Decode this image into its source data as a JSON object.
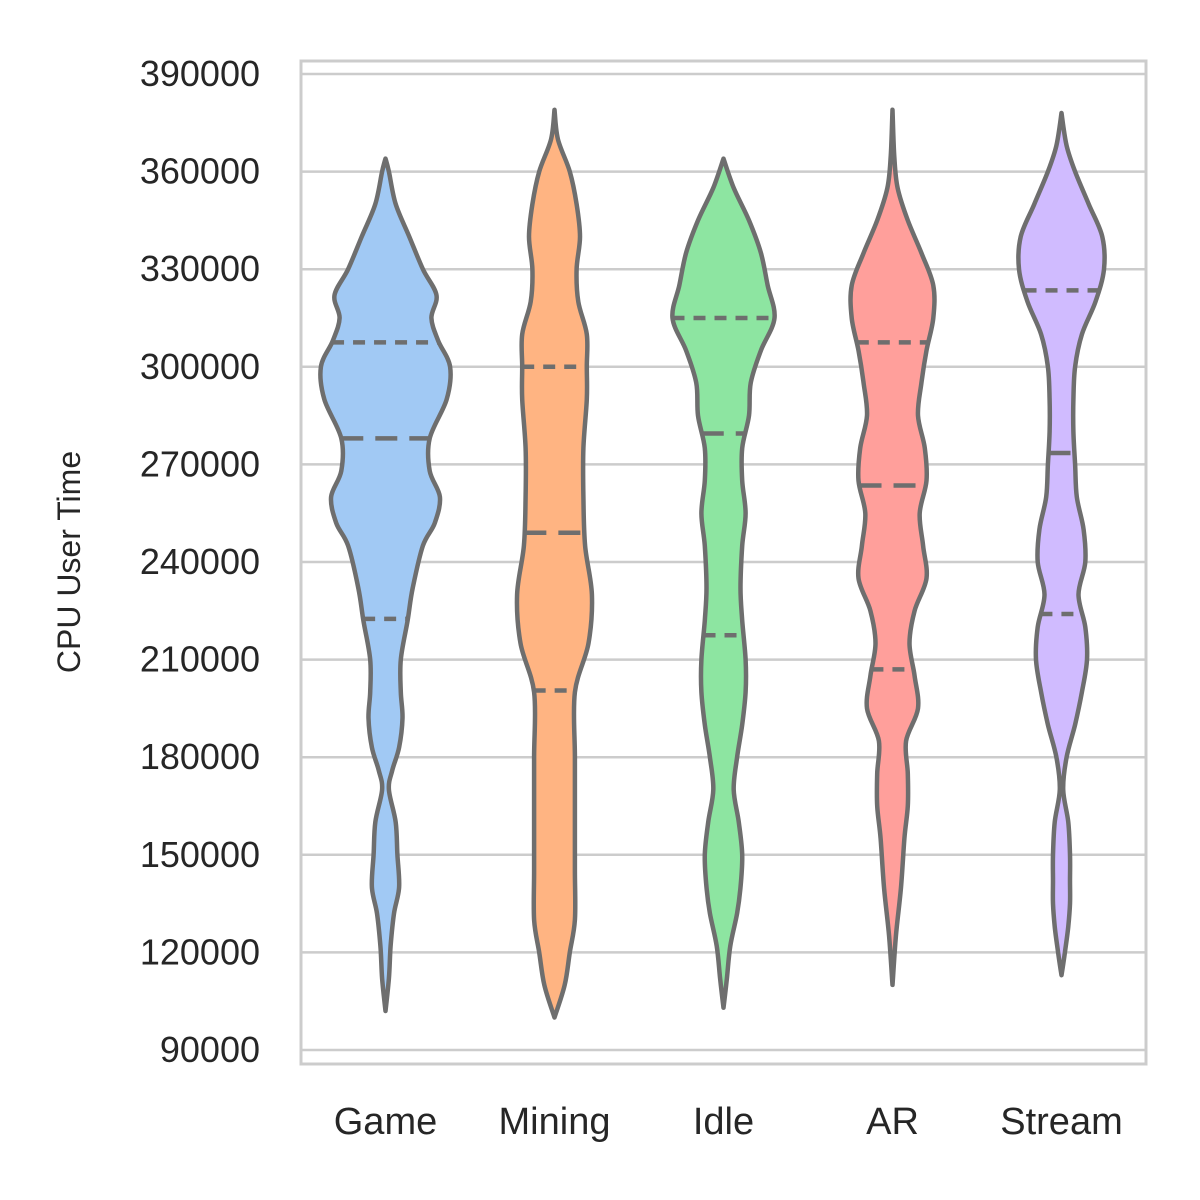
{
  "chart_data": {
    "type": "violin",
    "ylabel": "CPU User Time",
    "xlabel": "",
    "ylim": [
      90000,
      390000
    ],
    "yticks": [
      90000,
      120000,
      150000,
      180000,
      210000,
      240000,
      270000,
      300000,
      330000,
      360000,
      390000
    ],
    "grid": "horizontal",
    "inner": "quartile",
    "outline_color": "#6e6e6e",
    "categories": [
      "Game",
      "Mining",
      "Idle",
      "AR",
      "Stream"
    ],
    "series": [
      {
        "name": "Game",
        "color": "#a1c9f4",
        "quartiles": [
          222500,
          278000,
          307500
        ],
        "profile": [
          [
            102000,
            0.0
          ],
          [
            112000,
            0.02
          ],
          [
            122000,
            0.03
          ],
          [
            132000,
            0.05
          ],
          [
            140000,
            0.08
          ],
          [
            150000,
            0.07
          ],
          [
            160000,
            0.06
          ],
          [
            170000,
            0.02
          ],
          [
            176000,
            0.04
          ],
          [
            183000,
            0.08
          ],
          [
            192000,
            0.1
          ],
          [
            200000,
            0.09
          ],
          [
            210000,
            0.09
          ],
          [
            222000,
            0.13
          ],
          [
            232000,
            0.16
          ],
          [
            245000,
            0.22
          ],
          [
            252000,
            0.29
          ],
          [
            260000,
            0.32
          ],
          [
            268000,
            0.26
          ],
          [
            278000,
            0.26
          ],
          [
            290000,
            0.36
          ],
          [
            300000,
            0.38
          ],
          [
            308000,
            0.31
          ],
          [
            315000,
            0.27
          ],
          [
            322000,
            0.3
          ],
          [
            330000,
            0.22
          ],
          [
            340000,
            0.14
          ],
          [
            350000,
            0.06
          ],
          [
            360000,
            0.02
          ],
          [
            364000,
            0.0
          ]
        ]
      },
      {
        "name": "Mining",
        "color": "#ffb482",
        "quartiles": [
          200500,
          249000,
          300000
        ],
        "profile": [
          [
            100000,
            0.0
          ],
          [
            110000,
            0.06
          ],
          [
            120000,
            0.09
          ],
          [
            130000,
            0.12
          ],
          [
            145000,
            0.12
          ],
          [
            160000,
            0.12
          ],
          [
            180000,
            0.12
          ],
          [
            200000,
            0.12
          ],
          [
            215000,
            0.2
          ],
          [
            230000,
            0.22
          ],
          [
            245000,
            0.18
          ],
          [
            260000,
            0.17
          ],
          [
            275000,
            0.17
          ],
          [
            290000,
            0.19
          ],
          [
            300000,
            0.19
          ],
          [
            310000,
            0.19
          ],
          [
            320000,
            0.14
          ],
          [
            330000,
            0.13
          ],
          [
            340000,
            0.15
          ],
          [
            350000,
            0.13
          ],
          [
            360000,
            0.09
          ],
          [
            370000,
            0.02
          ],
          [
            379000,
            0.0
          ]
        ]
      },
      {
        "name": "Idle",
        "color": "#8de5a1",
        "quartiles": [
          217500,
          279500,
          315000
        ],
        "profile": [
          [
            103000,
            0.0
          ],
          [
            112000,
            0.02
          ],
          [
            122000,
            0.04
          ],
          [
            132000,
            0.08
          ],
          [
            140000,
            0.1
          ],
          [
            150000,
            0.11
          ],
          [
            160000,
            0.09
          ],
          [
            170000,
            0.06
          ],
          [
            180000,
            0.08
          ],
          [
            190000,
            0.11
          ],
          [
            200000,
            0.13
          ],
          [
            210000,
            0.13
          ],
          [
            222000,
            0.11
          ],
          [
            232000,
            0.1
          ],
          [
            245000,
            0.11
          ],
          [
            255000,
            0.13
          ],
          [
            265000,
            0.11
          ],
          [
            275000,
            0.11
          ],
          [
            285000,
            0.15
          ],
          [
            295000,
            0.16
          ],
          [
            305000,
            0.22
          ],
          [
            315000,
            0.3
          ],
          [
            325000,
            0.26
          ],
          [
            335000,
            0.22
          ],
          [
            345000,
            0.15
          ],
          [
            355000,
            0.06
          ],
          [
            364000,
            0.0
          ]
        ]
      },
      {
        "name": "AR",
        "color": "#ff9f9b",
        "quartiles": [
          207000,
          263500,
          307500
        ],
        "profile": [
          [
            110000,
            0.0
          ],
          [
            125000,
            0.02
          ],
          [
            140000,
            0.05
          ],
          [
            155000,
            0.07
          ],
          [
            165000,
            0.09
          ],
          [
            175000,
            0.09
          ],
          [
            185000,
            0.08
          ],
          [
            195000,
            0.15
          ],
          [
            205000,
            0.13
          ],
          [
            215000,
            0.1
          ],
          [
            225000,
            0.13
          ],
          [
            235000,
            0.2
          ],
          [
            245000,
            0.18
          ],
          [
            255000,
            0.16
          ],
          [
            265000,
            0.2
          ],
          [
            275000,
            0.19
          ],
          [
            285000,
            0.15
          ],
          [
            295000,
            0.17
          ],
          [
            305000,
            0.2
          ],
          [
            315000,
            0.24
          ],
          [
            325000,
            0.24
          ],
          [
            335000,
            0.17
          ],
          [
            345000,
            0.09
          ],
          [
            355000,
            0.03
          ],
          [
            365000,
            0.01
          ],
          [
            379000,
            0.0
          ]
        ]
      },
      {
        "name": "Stream",
        "color": "#d0bbff",
        "quartiles": [
          224000,
          273500,
          323500
        ],
        "profile": [
          [
            113000,
            0.0
          ],
          [
            120000,
            0.02
          ],
          [
            128000,
            0.04
          ],
          [
            135000,
            0.05
          ],
          [
            142000,
            0.05
          ],
          [
            150000,
            0.05
          ],
          [
            160000,
            0.04
          ],
          [
            170000,
            0.01
          ],
          [
            180000,
            0.03
          ],
          [
            190000,
            0.08
          ],
          [
            200000,
            0.12
          ],
          [
            210000,
            0.15
          ],
          [
            220000,
            0.14
          ],
          [
            230000,
            0.1
          ],
          [
            240000,
            0.14
          ],
          [
            250000,
            0.13
          ],
          [
            260000,
            0.09
          ],
          [
            270000,
            0.08
          ],
          [
            280000,
            0.07
          ],
          [
            290000,
            0.07
          ],
          [
            300000,
            0.08
          ],
          [
            310000,
            0.12
          ],
          [
            320000,
            0.2
          ],
          [
            330000,
            0.25
          ],
          [
            340000,
            0.24
          ],
          [
            350000,
            0.16
          ],
          [
            360000,
            0.08
          ],
          [
            368000,
            0.03
          ],
          [
            378000,
            0.0
          ]
        ]
      }
    ]
  }
}
